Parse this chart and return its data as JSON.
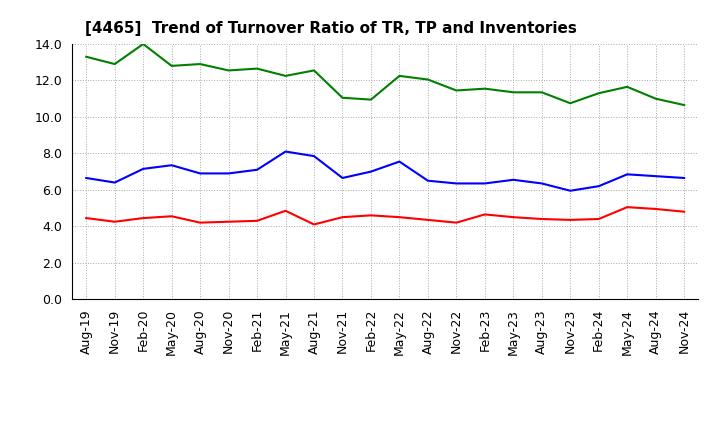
{
  "title": "[4465]  Trend of Turnover Ratio of TR, TP and Inventories",
  "x_labels": [
    "Aug-19",
    "Nov-19",
    "Feb-20",
    "May-20",
    "Aug-20",
    "Nov-20",
    "Feb-21",
    "May-21",
    "Aug-21",
    "Nov-21",
    "Feb-22",
    "May-22",
    "Aug-22",
    "Nov-22",
    "Feb-23",
    "May-23",
    "Aug-23",
    "Nov-23",
    "Feb-24",
    "May-24",
    "Aug-24",
    "Nov-24"
  ],
  "trade_receivables": [
    4.45,
    4.25,
    4.45,
    4.55,
    4.2,
    4.25,
    4.3,
    4.85,
    4.1,
    4.5,
    4.6,
    4.5,
    4.35,
    4.2,
    4.65,
    4.5,
    4.4,
    4.35,
    4.4,
    5.05,
    4.95,
    4.8
  ],
  "trade_payables": [
    6.65,
    6.4,
    7.15,
    7.35,
    6.9,
    6.9,
    7.1,
    8.1,
    7.85,
    6.65,
    7.0,
    7.55,
    6.5,
    6.35,
    6.35,
    6.55,
    6.35,
    5.95,
    6.2,
    6.85,
    6.75,
    6.65
  ],
  "inventories": [
    13.3,
    12.9,
    14.0,
    12.8,
    12.9,
    12.55,
    12.65,
    12.25,
    12.55,
    11.05,
    10.95,
    12.25,
    12.05,
    11.45,
    11.55,
    11.35,
    11.35,
    10.75,
    11.3,
    11.65,
    11.0,
    10.65
  ],
  "trade_receivables_color": "#ff0000",
  "trade_payables_color": "#0000ff",
  "inventories_color": "#008000",
  "ylim": [
    0.0,
    14.0
  ],
  "yticks": [
    0.0,
    2.0,
    4.0,
    6.0,
    8.0,
    10.0,
    12.0,
    14.0
  ],
  "background_color": "#ffffff",
  "grid_color": "#aaaaaa",
  "linewidth": 1.5,
  "title_fontsize": 11,
  "tick_fontsize": 9,
  "legend_fontsize": 9
}
